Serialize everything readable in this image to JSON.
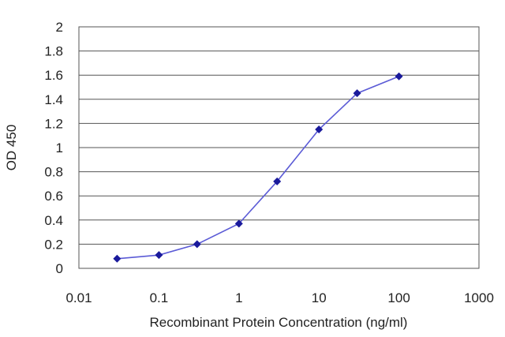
{
  "chart_data": {
    "type": "line",
    "title": "",
    "xlabel": "Recombinant Protein Concentration (ng/ml)",
    "ylabel": "OD 450",
    "xscale": "log",
    "xlim": [
      0.01,
      1000
    ],
    "ylim": [
      0,
      2
    ],
    "xticks": [
      "0.01",
      "0.1",
      "1",
      "10",
      "100",
      "1000"
    ],
    "yticks": [
      "0",
      "0.2",
      "0.4",
      "0.6",
      "0.8",
      "1",
      "1.2",
      "1.4",
      "1.6",
      "1.8",
      "2"
    ],
    "grid": "horizontal",
    "legend": "none",
    "series": [
      {
        "color": "#1a1a9c",
        "x": [
          0.03,
          0.1,
          0.3,
          1,
          3,
          10,
          30,
          100
        ],
        "y": [
          0.08,
          0.11,
          0.2,
          0.37,
          0.72,
          1.15,
          1.45,
          1.59
        ]
      }
    ],
    "colors": {
      "line": "#5b5bd6",
      "marker": "#1a1a9c",
      "grid": "#555555",
      "frame": "#555555"
    }
  }
}
